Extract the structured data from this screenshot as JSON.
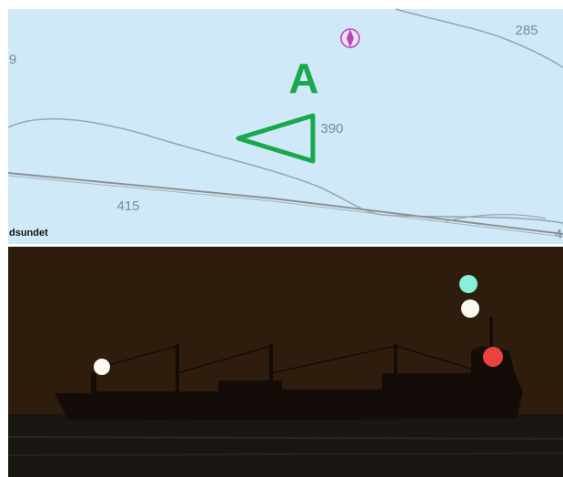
{
  "chart_panel": {
    "depth_labels": [
      "285",
      "9",
      "390",
      "415",
      "4"
    ],
    "marker_label": "A",
    "place_name": "dsundet"
  }
}
